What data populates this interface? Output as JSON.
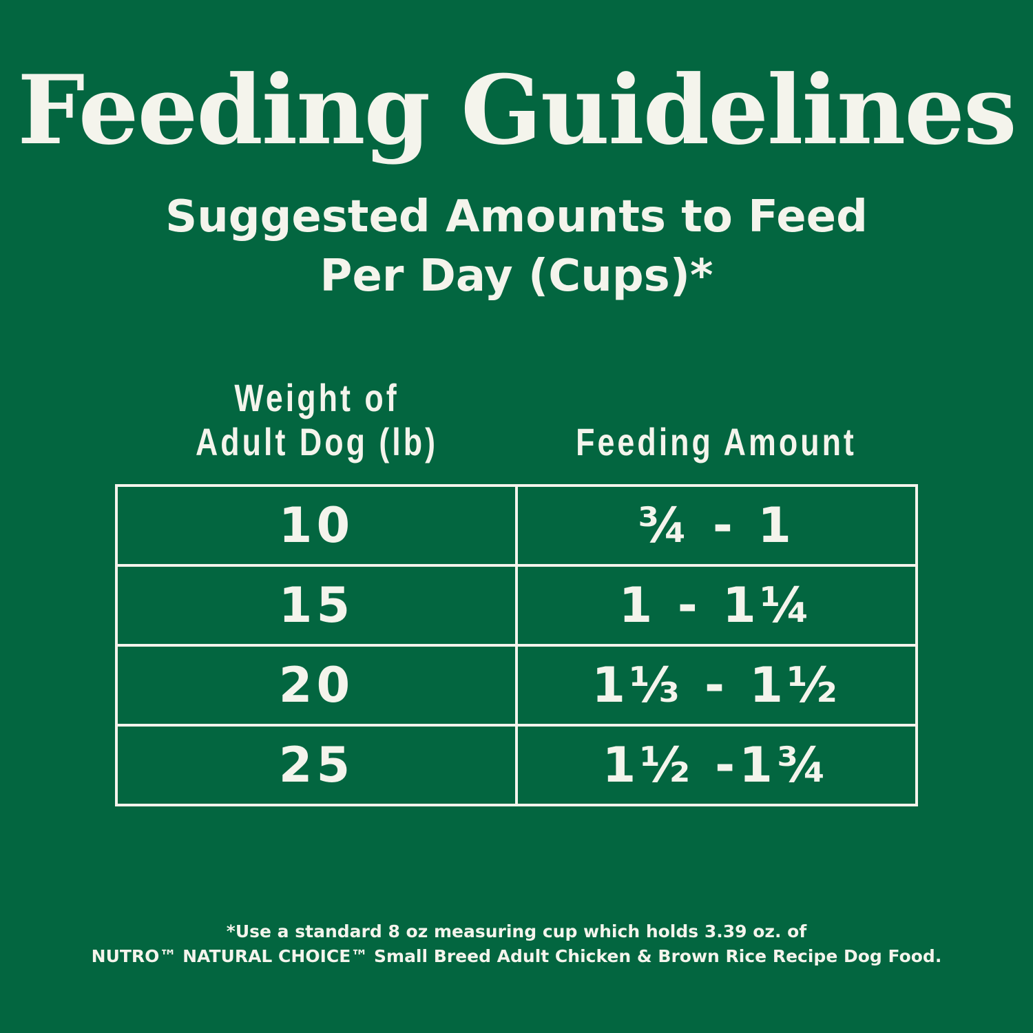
{
  "header": {
    "title": "Feeding Guidelines",
    "subtitle_lines": [
      "Suggested Amounts to Feed",
      "Per Day (Cups)*"
    ]
  },
  "table": {
    "columns": [
      [
        "Weight of",
        "Adult Dog (lb)"
      ],
      [
        "Feeding Amount"
      ]
    ],
    "rows": [
      [
        "10",
        "¾ - 1"
      ],
      [
        "15",
        "1 - 1¼"
      ],
      [
        "20",
        "1⅓ - 1½"
      ],
      [
        "25",
        "1½ -1¾"
      ]
    ]
  },
  "footnote": [
    "*Use a standard 8 oz measuring cup which holds 3.39 oz. of",
    "NUTRO™ NATURAL CHOICE™ Small Breed Adult Chicken & Brown Rice Recipe Dog Food."
  ]
}
